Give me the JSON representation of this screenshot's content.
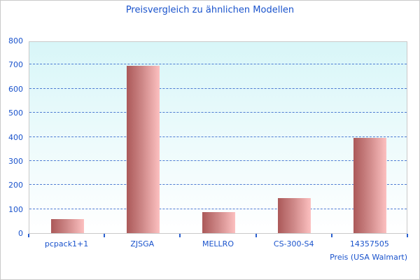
{
  "title": "Preisvergleich zu ähnlichen Modellen",
  "xaxis_title": "Preis (USA Walmart)",
  "colors": {
    "accent_text": "#1a53cc",
    "gridline": "#3366cc",
    "plot_bg_top": "#d8f6f8",
    "plot_bg_bottom": "#ffffff",
    "bar_gradient_left": "#ab5959",
    "bar_gradient_right": "#fcc0c0",
    "border": "#c9c9c9"
  },
  "chart_data": {
    "type": "bar",
    "title": "Preisvergleich zu ähnlichen Modellen",
    "xlabel": "Preis (USA Walmart)",
    "ylabel": "",
    "categories": [
      "pcpack1+1",
      "ZJSGA",
      "MELLRO",
      "CS-300-S4",
      "14357505"
    ],
    "values": [
      62,
      697,
      90,
      149,
      399
    ],
    "ylim": [
      0,
      800
    ],
    "yticks": [
      0,
      100,
      200,
      300,
      400,
      500,
      600,
      700,
      800
    ],
    "grid": "horizontal-dashed",
    "legend": "none",
    "bar_style": "horizontal red-pink gradient",
    "plot_background": "vertical gradient light-cyan to white"
  }
}
